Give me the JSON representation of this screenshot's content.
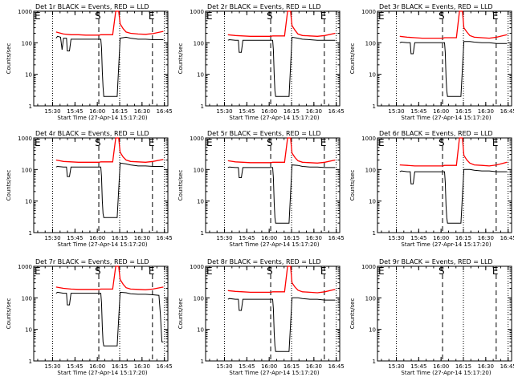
{
  "figure": {
    "time_axis_label": "Start Time (27-Apr-14 15:17:20)",
    "y_axis_label": "Counts/sec",
    "x_ticks": [
      "15:30",
      "15:45",
      "16:00",
      "16:15",
      "16:30",
      "16:45"
    ],
    "y_ticks": [
      "1",
      "10",
      "100",
      "1000"
    ],
    "markers": [
      {
        "label": "E",
        "time": "15:17:20",
        "style": "dashed"
      },
      {
        "label": "S",
        "time": "16:01",
        "style": "dashed"
      },
      {
        "label": "E",
        "time": "16:37",
        "style": "dashed"
      }
    ],
    "series_colors": {
      "events": "#000000",
      "lld": "#ff0000"
    }
  },
  "chart_data": [
    {
      "type": "line",
      "title": "Det 1r BLACK = Events, RED = LLD",
      "xlabel": "Start Time (27-Apr-14 15:17:20)",
      "ylabel": "Counts/sec",
      "x_unit": "minutes since 15:17:20",
      "yscale": "log",
      "ylim": [
        1,
        1000
      ],
      "series": [
        {
          "key": "events",
          "x": [
            15,
            16,
            18,
            19,
            20,
            22,
            22.5,
            24,
            25,
            30,
            35,
            40,
            44,
            45,
            45.5,
            46,
            46.5,
            47,
            56,
            58,
            62,
            65,
            70,
            75,
            80,
            87
          ],
          "y": [
            140,
            160,
            150,
            60,
            140,
            140,
            55,
            55,
            130,
            130,
            130,
            130,
            130,
            130,
            70,
            12,
            4,
            2,
            2,
            140,
            150,
            140,
            130,
            130,
            125,
            125
          ]
        },
        {
          "key": "lld",
          "x": [
            15,
            20,
            25,
            30,
            35,
            40,
            44,
            45,
            47,
            50,
            53,
            55,
            56,
            57,
            58,
            60,
            62,
            65,
            70,
            75,
            80,
            87
          ],
          "y": [
            220,
            190,
            180,
            180,
            175,
            175,
            175,
            180,
            180,
            180,
            180,
            1000,
            1000,
            1000,
            400,
            280,
            220,
            200,
            190,
            185,
            195,
            230
          ]
        }
      ]
    },
    {
      "type": "line",
      "title": "Det 2r BLACK = Events, RED = LLD",
      "xlabel": "Start Time (27-Apr-14 15:17:20)",
      "ylabel": "Counts/sec",
      "x_unit": "minutes since 15:17:20",
      "yscale": "log",
      "ylim": [
        1,
        1000
      ],
      "series": [
        {
          "key": "events",
          "x": [
            15,
            16,
            20,
            22,
            22.5,
            24,
            25,
            30,
            35,
            40,
            44,
            45,
            45.5,
            46,
            46.5,
            47,
            56,
            58,
            62,
            65,
            70,
            75,
            80,
            87
          ],
          "y": [
            120,
            125,
            120,
            120,
            50,
            50,
            120,
            120,
            120,
            120,
            120,
            120,
            60,
            10,
            3,
            2,
            2,
            150,
            140,
            130,
            125,
            120,
            120,
            120
          ]
        },
        {
          "key": "lld",
          "x": [
            15,
            20,
            25,
            30,
            35,
            40,
            44,
            45,
            47,
            50,
            53,
            55,
            56,
            57,
            58,
            60,
            62,
            65,
            70,
            75,
            80,
            87
          ],
          "y": [
            180,
            170,
            165,
            160,
            160,
            160,
            160,
            165,
            165,
            165,
            165,
            1000,
            1000,
            1000,
            350,
            250,
            190,
            170,
            165,
            160,
            170,
            200
          ]
        }
      ]
    },
    {
      "type": "line",
      "title": "Det 3r BLACK = Events, RED = LLD",
      "xlabel": "Start Time (27-Apr-14 15:17:20)",
      "ylabel": "Counts/sec",
      "x_unit": "minutes since 15:17:20",
      "yscale": "log",
      "ylim": [
        1,
        1000
      ],
      "series": [
        {
          "key": "events",
          "x": [
            15,
            16,
            20,
            22,
            22.5,
            24,
            25,
            30,
            35,
            40,
            44,
            45,
            45.5,
            46,
            46.5,
            47,
            56,
            58,
            62,
            65,
            70,
            75,
            80,
            87
          ],
          "y": [
            100,
            105,
            100,
            100,
            45,
            45,
            100,
            100,
            100,
            100,
            100,
            100,
            50,
            8,
            3,
            2,
            2,
            110,
            110,
            105,
            100,
            100,
            95,
            95
          ]
        },
        {
          "key": "lld",
          "x": [
            15,
            20,
            25,
            30,
            35,
            40,
            44,
            45,
            47,
            50,
            53,
            55,
            56,
            57,
            58,
            60,
            62,
            65,
            70,
            75,
            80,
            87
          ],
          "y": [
            160,
            150,
            145,
            140,
            140,
            140,
            140,
            145,
            145,
            145,
            145,
            1000,
            1000,
            1000,
            300,
            220,
            170,
            150,
            145,
            140,
            150,
            180
          ]
        }
      ]
    },
    {
      "type": "line",
      "title": "Det 4r BLACK = Events, RED = LLD",
      "xlabel": "Start Time (27-Apr-14 15:17:20)",
      "ylabel": "Counts/sec",
      "x_unit": "minutes since 15:17:20",
      "yscale": "log",
      "ylim": [
        1,
        1000
      ],
      "series": [
        {
          "key": "events",
          "x": [
            15,
            16,
            20,
            22,
            22.5,
            24,
            25,
            30,
            35,
            40,
            44,
            45,
            45.5,
            46,
            46.5,
            47,
            56,
            58,
            62,
            65,
            70,
            75,
            80,
            87
          ],
          "y": [
            120,
            125,
            120,
            120,
            60,
            60,
            120,
            120,
            120,
            120,
            120,
            120,
            60,
            10,
            4,
            3,
            3,
            160,
            150,
            140,
            130,
            130,
            125,
            125
          ]
        },
        {
          "key": "lld",
          "x": [
            15,
            20,
            25,
            30,
            35,
            40,
            44,
            45,
            47,
            50,
            53,
            55,
            56,
            57,
            58,
            60,
            62,
            65,
            70,
            75,
            80,
            87
          ],
          "y": [
            200,
            180,
            175,
            170,
            170,
            170,
            170,
            175,
            175,
            175,
            175,
            1000,
            1000,
            1000,
            350,
            250,
            200,
            180,
            175,
            170,
            180,
            210
          ]
        }
      ]
    },
    {
      "type": "line",
      "title": "Det 5r BLACK = Events, RED = LLD",
      "xlabel": "Start Time (27-Apr-14 15:17:20)",
      "ylabel": "Counts/sec",
      "x_unit": "minutes since 15:17:20",
      "yscale": "log",
      "ylim": [
        1,
        1000
      ],
      "series": [
        {
          "key": "events",
          "x": [
            15,
            16,
            20,
            22,
            22.5,
            24,
            25,
            30,
            35,
            40,
            44,
            45,
            45.5,
            46,
            46.5,
            47,
            56,
            58,
            62,
            65,
            70,
            75,
            80,
            87
          ],
          "y": [
            115,
            120,
            115,
            115,
            55,
            55,
            115,
            115,
            115,
            115,
            115,
            115,
            55,
            9,
            3,
            2,
            2,
            140,
            135,
            125,
            120,
            120,
            115,
            115
          ]
        },
        {
          "key": "lld",
          "x": [
            15,
            20,
            25,
            30,
            35,
            40,
            44,
            45,
            47,
            50,
            53,
            55,
            56,
            57,
            58,
            60,
            62,
            65,
            70,
            75,
            80,
            87
          ],
          "y": [
            190,
            175,
            170,
            165,
            165,
            165,
            165,
            170,
            170,
            170,
            170,
            1000,
            1000,
            1000,
            330,
            240,
            190,
            170,
            165,
            160,
            170,
            200
          ]
        }
      ]
    },
    {
      "type": "line",
      "title": "Det 6r BLACK = Events, RED = LLD",
      "xlabel": "Start Time (27-Apr-14 15:17:20)",
      "ylabel": "Counts/sec",
      "x_unit": "minutes since 15:17:20",
      "yscale": "log",
      "ylim": [
        1,
        1000
      ],
      "series": [
        {
          "key": "events",
          "x": [
            15,
            16,
            20,
            22,
            22.5,
            24,
            25,
            30,
            35,
            40,
            44,
            45,
            45.5,
            46,
            46.5,
            47,
            56,
            58,
            62,
            65,
            70,
            75,
            80,
            87
          ],
          "y": [
            85,
            90,
            85,
            85,
            35,
            35,
            85,
            85,
            85,
            85,
            85,
            85,
            40,
            7,
            3,
            2,
            2,
            100,
            100,
            95,
            90,
            90,
            85,
            85
          ]
        },
        {
          "key": "lld",
          "x": [
            15,
            20,
            25,
            30,
            35,
            40,
            44,
            45,
            47,
            50,
            53,
            55,
            56,
            57,
            58,
            60,
            62,
            65,
            70,
            75,
            80,
            87
          ],
          "y": [
            140,
            135,
            130,
            130,
            130,
            130,
            130,
            135,
            135,
            135,
            135,
            1000,
            1000,
            1000,
            280,
            200,
            160,
            140,
            135,
            130,
            140,
            170
          ]
        }
      ]
    },
    {
      "type": "line",
      "title": "Det 7r BLACK = Events, RED = LLD",
      "xlabel": "Start Time (27-Apr-14 15:17:20)",
      "ylabel": "Counts/sec",
      "x_unit": "minutes since 15:17:20",
      "yscale": "log",
      "ylim": [
        1,
        1000
      ],
      "series": [
        {
          "key": "events",
          "x": [
            15,
            16,
            20,
            22,
            22.5,
            24,
            25,
            30,
            35,
            40,
            44,
            45,
            45.5,
            46,
            46.5,
            47,
            56,
            58,
            62,
            65,
            70,
            75,
            80,
            84,
            85,
            86,
            87
          ],
          "y": [
            140,
            150,
            140,
            140,
            60,
            60,
            140,
            140,
            140,
            140,
            140,
            140,
            70,
            12,
            4,
            3,
            3,
            150,
            145,
            135,
            130,
            130,
            125,
            120,
            30,
            4,
            4
          ]
        },
        {
          "key": "lld",
          "x": [
            15,
            20,
            25,
            30,
            35,
            40,
            44,
            45,
            47,
            50,
            53,
            55,
            56,
            57,
            58,
            60,
            62,
            65,
            70,
            75,
            80,
            87
          ],
          "y": [
            220,
            200,
            190,
            185,
            185,
            185,
            185,
            190,
            190,
            190,
            190,
            1000,
            1000,
            1000,
            380,
            270,
            210,
            190,
            185,
            180,
            190,
            220
          ]
        }
      ]
    },
    {
      "type": "line",
      "title": "Det 8r BLACK = Events, RED = LLD",
      "xlabel": "Start Time (27-Apr-14 15:17:20)",
      "ylabel": "Counts/sec",
      "x_unit": "minutes since 15:17:20",
      "yscale": "log",
      "ylim": [
        1,
        1000
      ],
      "series": [
        {
          "key": "events",
          "x": [
            15,
            16,
            20,
            22,
            22.5,
            24,
            25,
            30,
            35,
            40,
            44,
            45,
            45.5,
            46,
            46.5,
            47,
            56,
            58,
            62,
            65,
            70,
            75,
            80,
            87
          ],
          "y": [
            90,
            95,
            90,
            90,
            40,
            40,
            90,
            90,
            90,
            90,
            90,
            90,
            45,
            8,
            3,
            2,
            2,
            100,
            100,
            95,
            90,
            90,
            85,
            85
          ]
        },
        {
          "key": "lld",
          "x": [
            15,
            20,
            25,
            30,
            35,
            40,
            44,
            45,
            47,
            50,
            53,
            55,
            56,
            57,
            58,
            60,
            62,
            65,
            70,
            75,
            80,
            87
          ],
          "y": [
            170,
            160,
            155,
            150,
            150,
            150,
            150,
            155,
            155,
            155,
            155,
            1000,
            1000,
            1000,
            300,
            220,
            175,
            155,
            150,
            145,
            155,
            185
          ]
        }
      ]
    },
    {
      "type": "line",
      "title": "Det 9r BLACK = Events, RED = LLD",
      "xlabel": "Start Time (27-Apr-14 15:17:20)",
      "ylabel": "Counts/sec",
      "x_unit": "minutes since 15:17:20",
      "yscale": "log",
      "ylim": [
        1,
        1000
      ],
      "series": []
    }
  ]
}
